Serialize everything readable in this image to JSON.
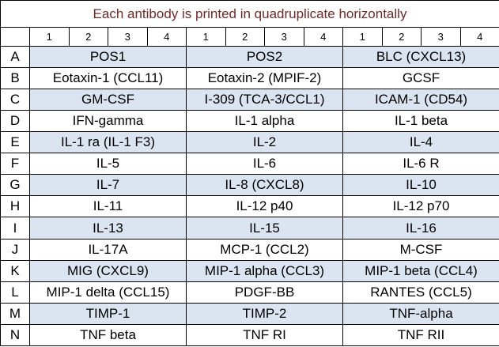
{
  "header": {
    "title": "Each antibody is printed in quadruplicate horizontally"
  },
  "column_groups": [
    [
      1,
      2,
      3,
      4
    ],
    [
      1,
      2,
      3,
      4
    ],
    [
      1,
      2,
      3,
      4
    ]
  ],
  "rows": [
    {
      "label": "A",
      "cells": [
        "POS1",
        "POS2",
        "BLC (CXCL13)"
      ]
    },
    {
      "label": "B",
      "cells": [
        "Eotaxin-1 (CCL11)",
        "Eotaxin-2 (MPIF-2)",
        "GCSF"
      ]
    },
    {
      "label": "C",
      "cells": [
        "GM-CSF",
        "I-309 (TCA-3/CCL1)",
        "ICAM-1 (CD54)"
      ]
    },
    {
      "label": "D",
      "cells": [
        "IFN-gamma",
        "IL-1 alpha",
        "IL-1 beta"
      ]
    },
    {
      "label": "E",
      "cells": [
        "IL-1 ra (IL-1 F3)",
        "IL-2",
        "IL-4"
      ]
    },
    {
      "label": "F",
      "cells": [
        "IL-5",
        "IL-6",
        "IL-6 R"
      ]
    },
    {
      "label": "G",
      "cells": [
        "IL-7",
        "IL-8 (CXCL8)",
        "IL-10"
      ]
    },
    {
      "label": "H",
      "cells": [
        "IL-11",
        "IL-12 p40",
        "IL-12 p70"
      ]
    },
    {
      "label": "I",
      "cells": [
        "IL-13",
        "IL-15",
        "IL-16"
      ]
    },
    {
      "label": "J",
      "cells": [
        "IL-17A",
        "MCP-1 (CCL2)",
        "M-CSF"
      ]
    },
    {
      "label": "K",
      "cells": [
        "MIG (CXCL9)",
        "MIP-1 alpha (CCL3)",
        "MIP-1 beta (CCL4)"
      ]
    },
    {
      "label": "L",
      "cells": [
        "MIP-1 delta (CCL15)",
        "PDGF-BB",
        "RANTES (CCL5)"
      ]
    },
    {
      "label": "M",
      "cells": [
        "TIMP-1",
        "TIMP-2",
        "TNF-alpha"
      ]
    },
    {
      "label": "N",
      "cells": [
        "TNF beta",
        "TNF RI",
        "TNF RII"
      ]
    }
  ]
}
